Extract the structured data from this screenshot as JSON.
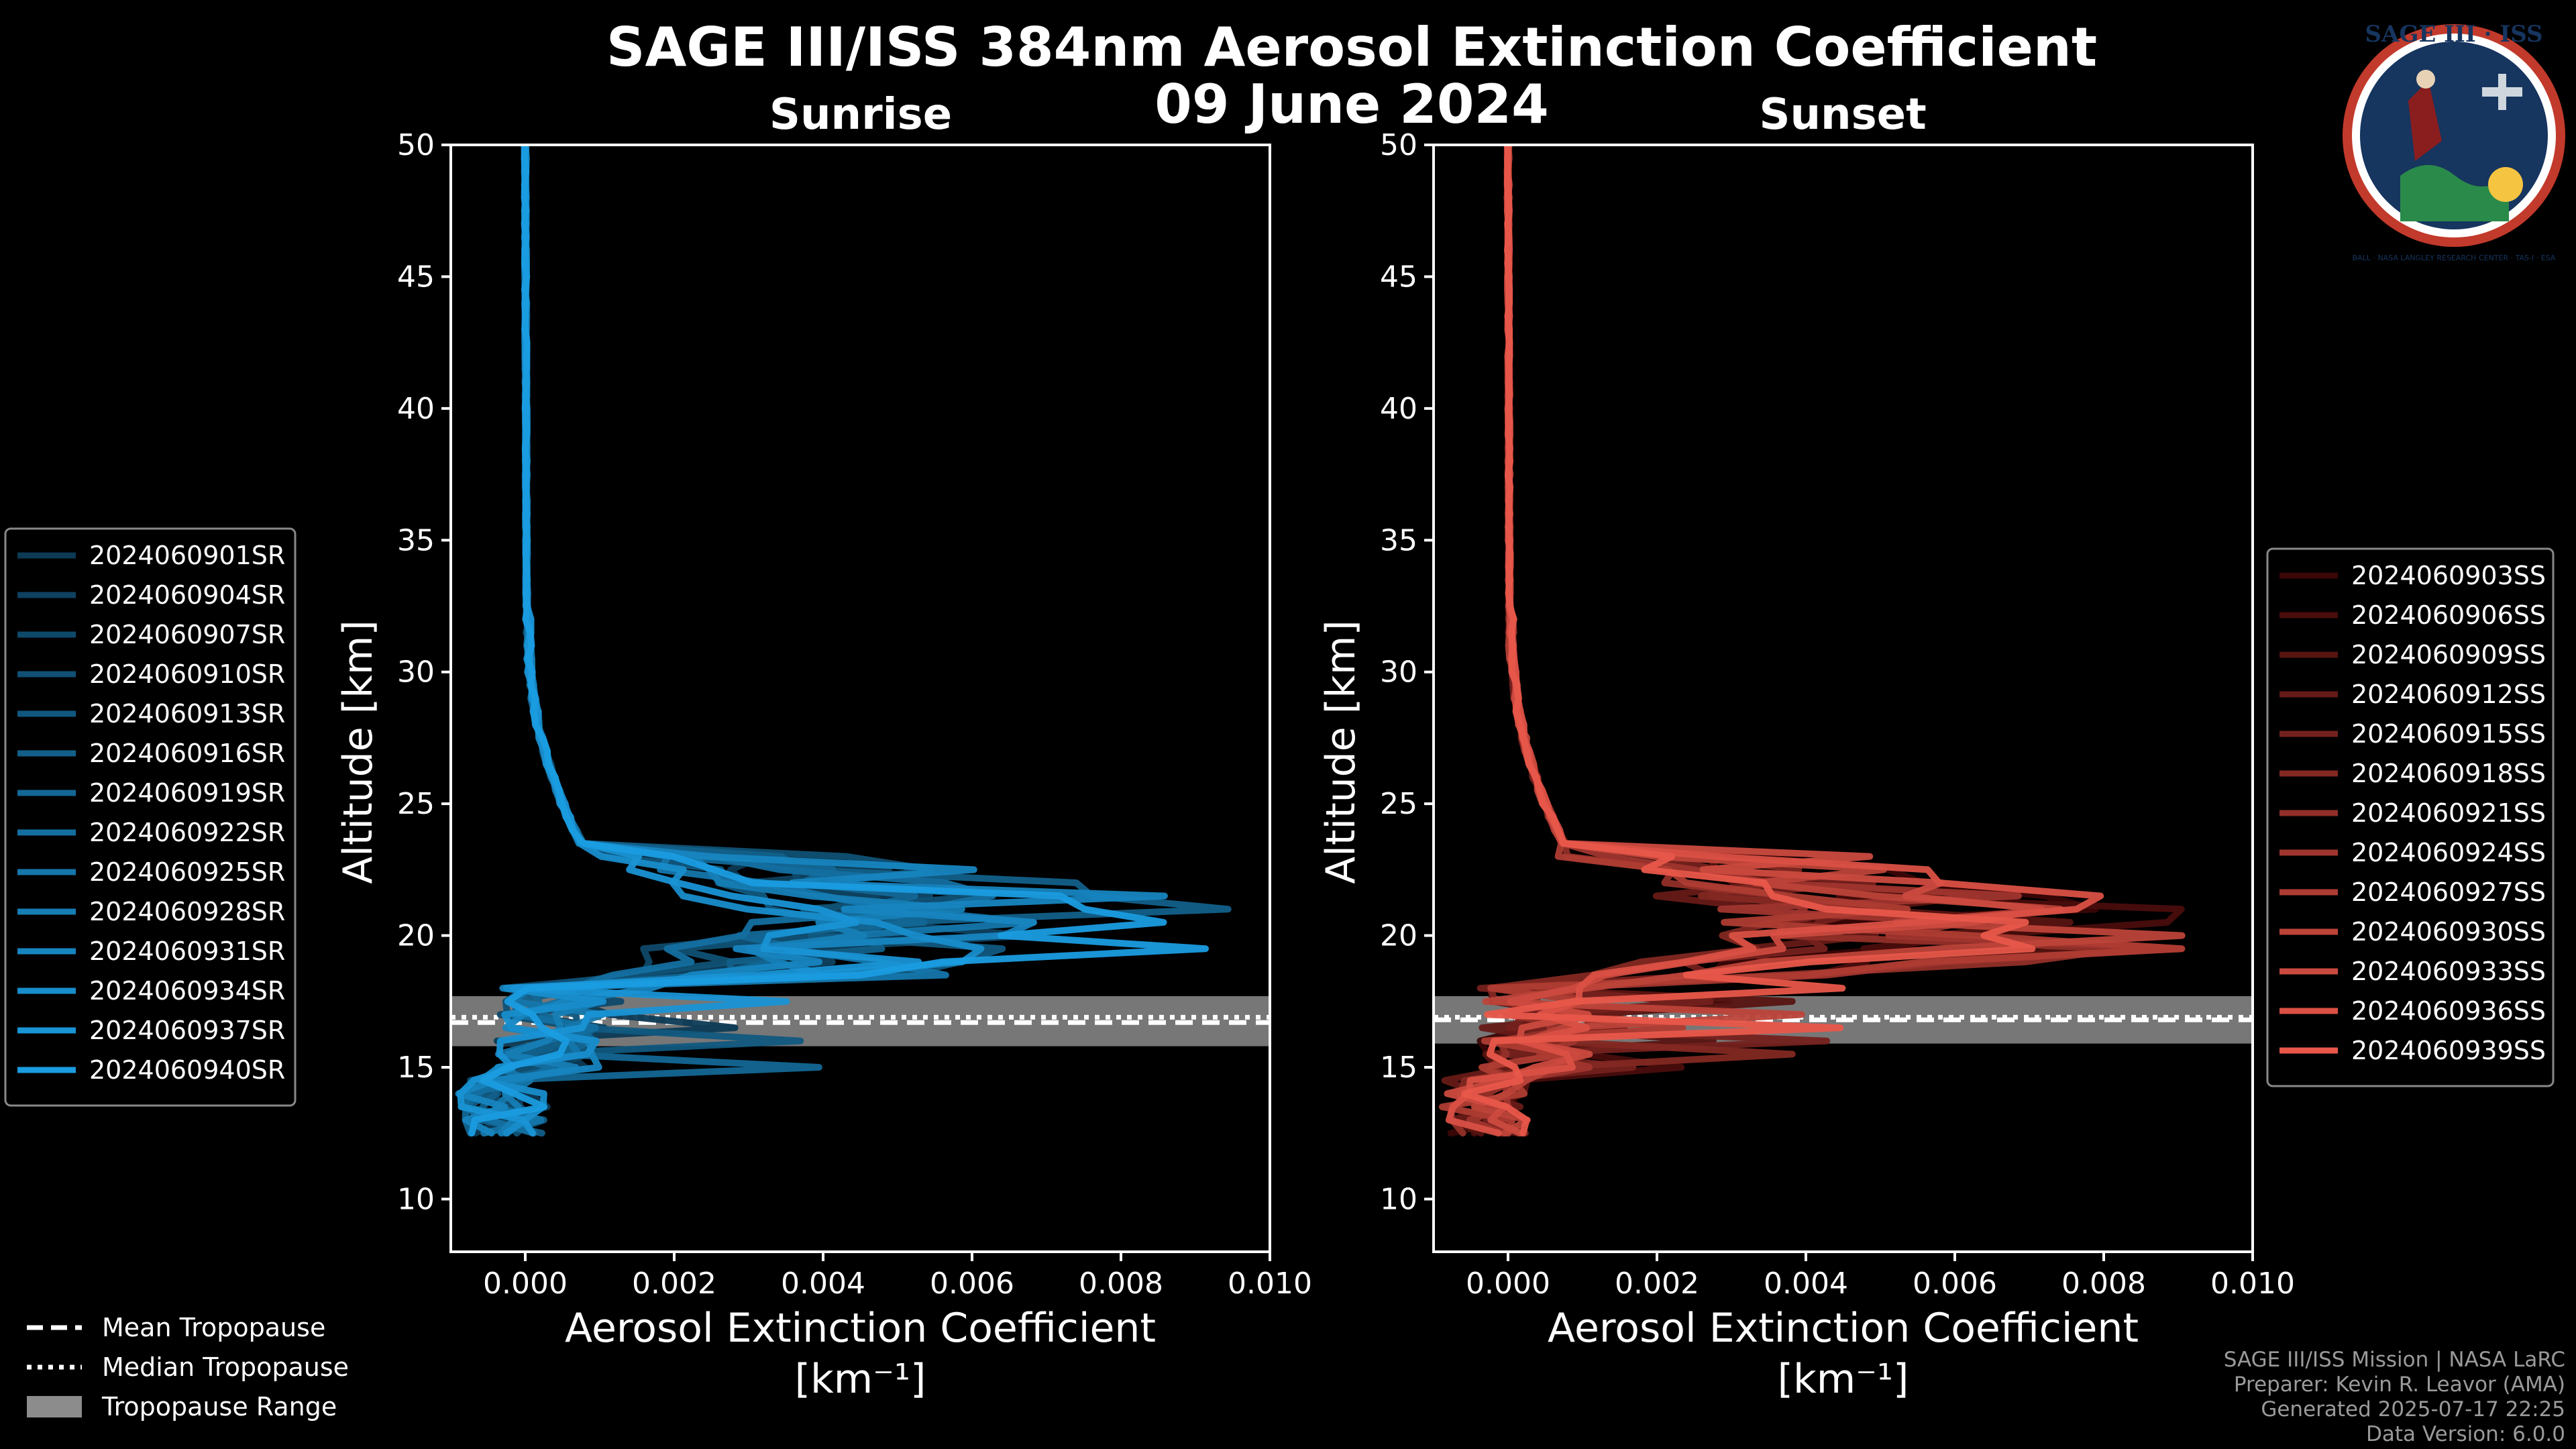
{
  "title_line1": "SAGE III/ISS 384nm Aerosol Extinction Coefficient",
  "title_line2": "09 June 2024",
  "logo": {
    "top_text": "SAGE III · ISS",
    "ring_text": "BALL · NASA LANGLEY RESEARCH CENTER · TAS-I · ESA"
  },
  "credits": [
    "SAGE III/ISS Mission | NASA LaRC",
    "Preparer: Kevin R. Leavor (AMA)",
    "Generated 2025-07-17 22:25",
    "Data Version: 6.0.0"
  ],
  "tropopause_legend": [
    {
      "label": "Mean Tropopause",
      "style": "dashed"
    },
    {
      "label": "Median Tropopause",
      "style": "dotted"
    },
    {
      "label": "Tropopause Range",
      "style": "band"
    }
  ],
  "chart_data": [
    {
      "type": "line",
      "title": "Sunrise",
      "xlabel": "Aerosol Extinction Coefficient",
      "xunit": "[km⁻¹]",
      "ylabel": "Altitude [km]",
      "xlim": [
        -0.001,
        0.01
      ],
      "ylim": [
        8,
        50
      ],
      "xticks": [
        0.0,
        0.002,
        0.004,
        0.006,
        0.008,
        0.01
      ],
      "xtick_labels": [
        "0.000",
        "0.002",
        "0.004",
        "0.006",
        "0.008",
        "0.010"
      ],
      "yticks": [
        10,
        15,
        20,
        25,
        30,
        35,
        40,
        45,
        50
      ],
      "tropopause": {
        "mean": 16.7,
        "median": 16.9,
        "range": [
          15.8,
          17.7
        ]
      },
      "color_dark": "#0d3a55",
      "color_bright": "#1a9ce0",
      "legend_position": "left",
      "series": [
        "2024060901SR",
        "2024060904SR",
        "2024060907SR",
        "2024060910SR",
        "2024060913SR",
        "2024060916SR",
        "2024060919SR",
        "2024060922SR",
        "2024060925SR",
        "2024060928SR",
        "2024060931SR",
        "2024060934SR",
        "2024060937SR",
        "2024060940SR"
      ]
    },
    {
      "type": "line",
      "title": "Sunset",
      "xlabel": "Aerosol Extinction Coefficient",
      "xunit": "[km⁻¹]",
      "ylabel": "Altitude [km]",
      "xlim": [
        -0.001,
        0.01
      ],
      "ylim": [
        8,
        50
      ],
      "xticks": [
        0.0,
        0.002,
        0.004,
        0.006,
        0.008,
        0.01
      ],
      "xtick_labels": [
        "0.000",
        "0.002",
        "0.004",
        "0.006",
        "0.008",
        "0.010"
      ],
      "yticks": [
        10,
        15,
        20,
        25,
        30,
        35,
        40,
        45,
        50
      ],
      "tropopause": {
        "mean": 16.8,
        "median": 16.9,
        "range": [
          15.9,
          17.7
        ]
      },
      "color_dark": "#3a0606",
      "color_bright": "#e8574a",
      "legend_position": "right",
      "series": [
        "2024060903SS",
        "2024060906SS",
        "2024060909SS",
        "2024060912SS",
        "2024060915SS",
        "2024060918SS",
        "2024060921SS",
        "2024060924SS",
        "2024060927SS",
        "2024060930SS",
        "2024060933SS",
        "2024060936SS",
        "2024060939SS"
      ]
    }
  ]
}
